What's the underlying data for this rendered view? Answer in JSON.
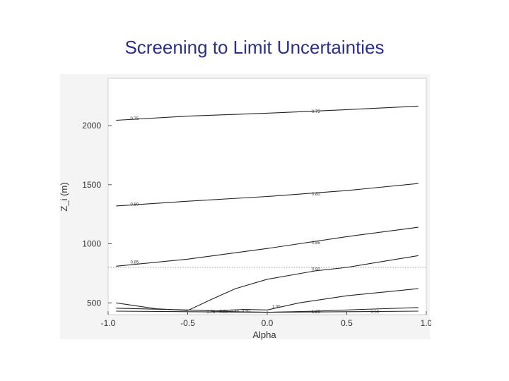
{
  "slide": {
    "title": "Screening to Limit Uncertainties",
    "title_color": "#2b2f8c"
  },
  "chart_data": {
    "type": "line",
    "title": "",
    "xlabel": "Alpha",
    "ylabel": "Z_i (m)",
    "xlim": [
      -1.0,
      1.0
    ],
    "ylim": [
      400,
      2400
    ],
    "xticks": [
      "-1.0",
      "-0.5",
      "0.0",
      "0.5",
      "1.0"
    ],
    "yticks": [
      "500",
      "1000",
      "1500",
      "2000"
    ],
    "grid": false,
    "reference_line": {
      "y": 800,
      "style": "dotted"
    },
    "series": [
      {
        "name": "0.75",
        "x": [
          -0.95,
          -0.5,
          0.0,
          0.5,
          0.95
        ],
        "y": [
          2045,
          2080,
          2105,
          2135,
          2165
        ]
      },
      {
        "name": "0.80",
        "x": [
          -0.95,
          -0.5,
          0.0,
          0.5,
          0.95
        ],
        "y": [
          1320,
          1360,
          1400,
          1450,
          1510
        ]
      },
      {
        "name": "0.85",
        "x": [
          -0.95,
          -0.5,
          0.0,
          0.5,
          0.95
        ],
        "y": [
          810,
          870,
          960,
          1060,
          1140
        ]
      },
      {
        "name": "0.90",
        "x": [
          -0.95,
          -0.7,
          -0.5,
          -0.35,
          -0.2,
          0.0,
          0.3,
          0.5,
          0.95
        ],
        "y": [
          500,
          450,
          435,
          530,
          620,
          700,
          770,
          800,
          900
        ]
      },
      {
        "name": "1.00",
        "x": [
          -0.35,
          -0.15,
          0.0,
          0.2,
          0.5,
          0.95
        ],
        "y": [
          430,
          445,
          440,
          500,
          560,
          620
        ]
      },
      {
        "name": "1.25",
        "x": [
          -0.95,
          -0.5,
          -0.2,
          0.0,
          0.3,
          0.6,
          0.95
        ],
        "y": [
          455,
          440,
          425,
          420,
          430,
          445,
          460
        ]
      },
      {
        "name": "1.50",
        "x": [
          -0.95,
          -0.5,
          0.0,
          0.5,
          0.95
        ],
        "y": [
          430,
          425,
          420,
          425,
          430
        ]
      }
    ],
    "contour_labels": [
      {
        "text": "0.75",
        "x": -0.86,
        "y": 2060
      },
      {
        "text": "0.75",
        "x": 0.28,
        "y": 2120
      },
      {
        "text": "0.80",
        "x": -0.86,
        "y": 1335
      },
      {
        "text": "0.80",
        "x": 0.28,
        "y": 1420
      },
      {
        "text": "0.85",
        "x": -0.86,
        "y": 845
      },
      {
        "text": "0.85",
        "x": 0.28,
        "y": 1010
      },
      {
        "text": "0.90",
        "x": 0.28,
        "y": 785
      },
      {
        "text": "1.00",
        "x": 0.03,
        "y": 470
      },
      {
        "text": "1.25",
        "x": 0.28,
        "y": 425
      },
      {
        "text": "1.50",
        "x": 0.65,
        "y": 425
      },
      {
        "text": "0.75",
        "x": -0.38,
        "y": 425
      },
      {
        "text": "0.80",
        "x": -0.3,
        "y": 428
      },
      {
        "text": "0.85",
        "x": -0.23,
        "y": 430
      },
      {
        "text": "0.90",
        "x": -0.16,
        "y": 432
      }
    ]
  }
}
